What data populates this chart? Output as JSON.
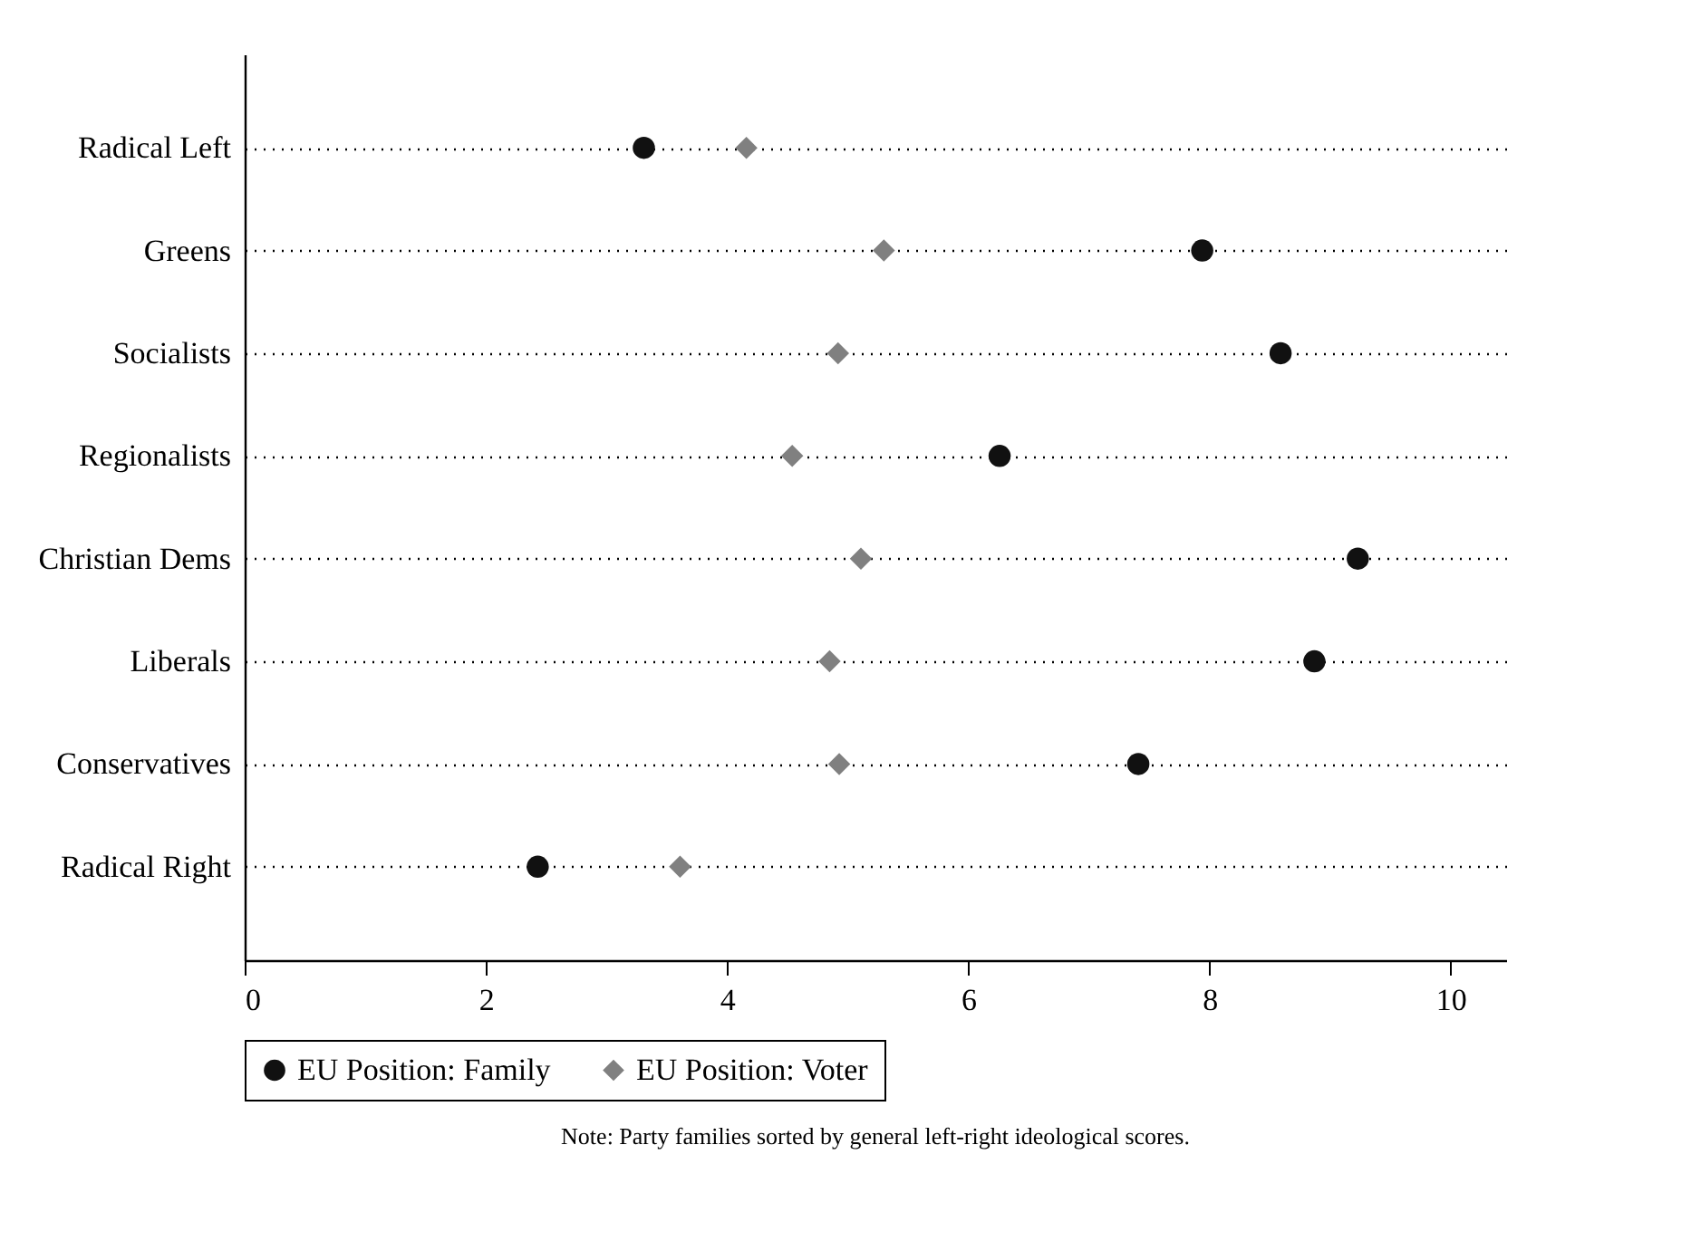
{
  "chart_data": {
    "type": "scatter",
    "categories": [
      "Radical Left",
      "Greens",
      "Socialists",
      "Regionalists",
      "Christian Dems",
      "Liberals",
      "Conservatives",
      "Radical Right"
    ],
    "orientation": "horizontal",
    "series": [
      {
        "name": "EU Position: Family",
        "color": "#111111",
        "marker": "circle",
        "values": [
          3.31,
          7.94,
          8.59,
          6.26,
          9.23,
          8.87,
          7.41,
          2.43
        ]
      },
      {
        "name": "EU Position: Voter",
        "color": "#808080",
        "marker": "diamond",
        "values": [
          4.16,
          5.3,
          4.92,
          4.54,
          5.11,
          4.85,
          4.93,
          3.61
        ]
      }
    ],
    "xlim": [
      0,
      10.46
    ],
    "xticks": [
      0,
      2,
      4,
      6,
      8,
      10
    ],
    "grid": "y",
    "line_style": "dotted",
    "legend": "bottom",
    "annotations": [
      "Note: Party families sorted by general left-right ideological scores."
    ]
  }
}
